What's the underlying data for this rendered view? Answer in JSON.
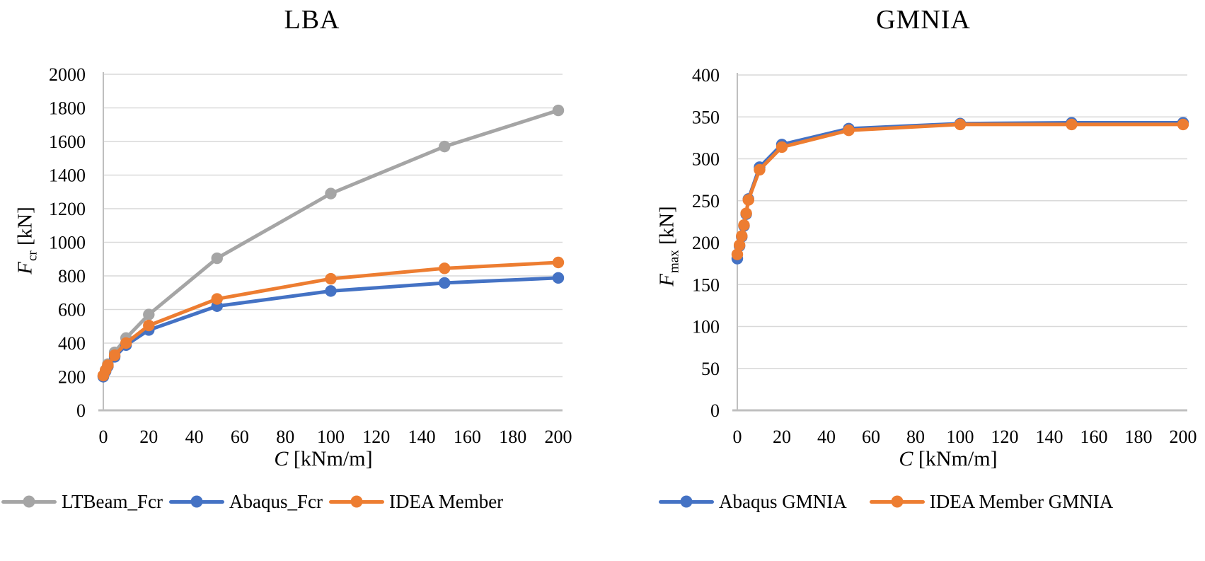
{
  "colors": {
    "blue": "#4472C4",
    "orange": "#ED7D31",
    "gray": "#A5A5A5",
    "gridline": "#D9D9D9",
    "axis": "#BFBFBF",
    "text": "#000000"
  },
  "chart_data": [
    {
      "type": "line",
      "title": "LBA",
      "xlabel_symbol": "C",
      "xlabel_unit": " [kNm/m]",
      "ylabel_symbol": "F",
      "ylabel_subscript": "cr",
      "ylabel_unit": " [kN]",
      "xlim": [
        0,
        200
      ],
      "ylim": [
        0,
        2000
      ],
      "xticks": [
        "0",
        "20",
        "40",
        "60",
        "80",
        "100",
        "120",
        "140",
        "160",
        "180",
        "200"
      ],
      "yticks": [
        "0",
        "200",
        "400",
        "600",
        "800",
        "1000",
        "1200",
        "1400",
        "1600",
        "1800",
        "2000"
      ],
      "grid": "horizontal",
      "legend_position": "bottom",
      "x": [
        0,
        1,
        2,
        5,
        10,
        20,
        50,
        100,
        150,
        200
      ],
      "series": [
        {
          "name": "LTBeam_Fcr",
          "color_key": "gray",
          "values": [
            205,
            240,
            275,
            345,
            430,
            570,
            905,
            1290,
            1570,
            1785
          ]
        },
        {
          "name": "Abaqus_Fcr",
          "color_key": "blue",
          "values": [
            200,
            232,
            262,
            318,
            388,
            478,
            620,
            710,
            758,
            788
          ]
        },
        {
          "name": "IDEA Member",
          "color_key": "orange",
          "values": [
            207,
            238,
            268,
            328,
            400,
            505,
            663,
            783,
            845,
            880
          ]
        }
      ]
    },
    {
      "type": "line",
      "title": "GMNIA",
      "xlabel_symbol": "C",
      "xlabel_unit": " [kNm/m]",
      "ylabel_symbol": "F",
      "ylabel_subscript": "max",
      "ylabel_unit": " [kN]",
      "xlim": [
        0,
        200
      ],
      "ylim": [
        0,
        400
      ],
      "xticks": [
        "0",
        "20",
        "40",
        "60",
        "80",
        "100",
        "120",
        "140",
        "160",
        "180",
        "200"
      ],
      "yticks": [
        "0",
        "50",
        "100",
        "150",
        "200",
        "250",
        "300",
        "350",
        "400"
      ],
      "grid": "horizontal",
      "legend_position": "bottom",
      "x": [
        0,
        1,
        2,
        3,
        4,
        5,
        10,
        20,
        50,
        100,
        150,
        200
      ],
      "series": [
        {
          "name": "Abaqus GMNIA",
          "color_key": "blue",
          "values": [
            181,
            196,
            207,
            220,
            234,
            252,
            290,
            317,
            336,
            342,
            343,
            343
          ]
        },
        {
          "name": "IDEA Member GMNIA",
          "color_key": "orange",
          "values": [
            186,
            197,
            208,
            221,
            235,
            251,
            287,
            314,
            334,
            341,
            341,
            341
          ]
        }
      ]
    }
  ]
}
